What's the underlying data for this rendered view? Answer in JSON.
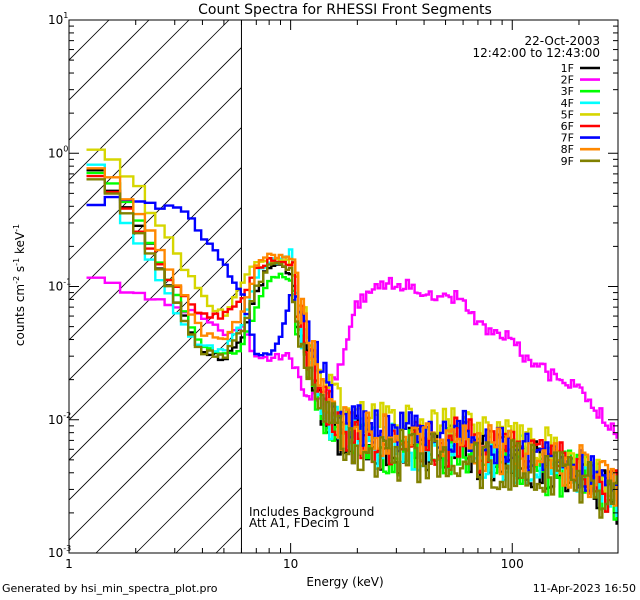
{
  "chart_data": {
    "type": "line",
    "title": "Count Spectra for RHESSI Front Segments",
    "xlabel": "Energy (keV)",
    "ylabel": {
      "base": "counts cm",
      "exp1": "-2",
      "mid1": " s",
      "exp2": "-1",
      "mid2": " keV",
      "exp3": "-1"
    },
    "xscale": "log",
    "yscale": "log",
    "xlim": [
      1,
      300
    ],
    "ylim": [
      0.001,
      10
    ],
    "x_ticks": [
      {
        "v": 1,
        "label": "1"
      },
      {
        "v": 10,
        "label": "10"
      },
      {
        "v": 100,
        "label": "100"
      }
    ],
    "y_ticks": [
      {
        "v": 0.001,
        "base": "10",
        "exp": "-3"
      },
      {
        "v": 0.01,
        "base": "10",
        "exp": "-2"
      },
      {
        "v": 0.1,
        "base": "10",
        "exp": "-1"
      },
      {
        "v": 1,
        "base": "10",
        "exp": "0"
      },
      {
        "v": 10,
        "base": "10",
        "exp": "1"
      }
    ],
    "attenuator_region": [
      1,
      6
    ],
    "date": "22-Oct-2003",
    "time_range": "12:42:00 to 12:43:00",
    "annotation": [
      "Includes Background",
      "Att A1, FDecim 1"
    ],
    "series": [
      {
        "name": "1F",
        "color": "#000000",
        "points": [
          [
            1.2,
            0.8
          ],
          [
            1.5,
            0.62
          ],
          [
            2,
            0.32
          ],
          [
            2.5,
            0.16
          ],
          [
            3,
            0.085
          ],
          [
            3.5,
            0.05
          ],
          [
            4,
            0.034
          ],
          [
            5,
            0.028
          ],
          [
            6,
            0.04
          ],
          [
            7,
            0.09
          ],
          [
            8,
            0.14
          ],
          [
            9,
            0.15
          ],
          [
            10,
            0.12
          ],
          [
            11,
            0.04
          ],
          [
            12,
            0.025
          ],
          [
            14,
            0.013
          ],
          [
            17,
            0.008
          ],
          [
            20,
            0.007
          ],
          [
            25,
            0.006
          ],
          [
            30,
            0.0062
          ],
          [
            40,
            0.0058
          ],
          [
            50,
            0.0057
          ],
          [
            60,
            0.007
          ],
          [
            70,
            0.005
          ],
          [
            80,
            0.0052
          ],
          [
            100,
            0.005
          ],
          [
            120,
            0.0045
          ],
          [
            150,
            0.0045
          ],
          [
            200,
            0.004
          ],
          [
            250,
            0.003
          ],
          [
            300,
            0.0025
          ]
        ],
        "jit": 0.45,
        "seed": 11
      },
      {
        "name": "2F",
        "color": "#ff00ff",
        "points": [
          [
            1.2,
            0.115
          ],
          [
            1.5,
            0.105
          ],
          [
            2,
            0.09
          ],
          [
            2.5,
            0.08
          ],
          [
            3,
            0.07
          ],
          [
            4,
            0.06
          ],
          [
            5,
            0.045
          ],
          [
            6,
            0.05
          ],
          [
            7,
            0.03
          ],
          [
            8,
            0.028
          ],
          [
            9,
            0.03
          ],
          [
            10,
            0.03
          ],
          [
            12,
            0.015
          ],
          [
            14,
            0.014
          ],
          [
            16,
            0.02
          ],
          [
            18,
            0.04
          ],
          [
            20,
            0.075
          ],
          [
            25,
            0.1
          ],
          [
            30,
            0.105
          ],
          [
            35,
            0.098
          ],
          [
            40,
            0.09
          ],
          [
            50,
            0.085
          ],
          [
            60,
            0.08
          ],
          [
            70,
            0.055
          ],
          [
            80,
            0.045
          ],
          [
            100,
            0.04
          ],
          [
            120,
            0.026
          ],
          [
            150,
            0.022
          ],
          [
            200,
            0.018
          ],
          [
            250,
            0.011
          ],
          [
            300,
            0.0075
          ]
        ],
        "jit": 0.12,
        "seed": 12
      },
      {
        "name": "3F",
        "color": "#00ff00",
        "points": [
          [
            1.2,
            0.85
          ],
          [
            1.5,
            0.65
          ],
          [
            2,
            0.34
          ],
          [
            2.5,
            0.17
          ],
          [
            3,
            0.09
          ],
          [
            3.5,
            0.052
          ],
          [
            4,
            0.036
          ],
          [
            5,
            0.03
          ],
          [
            6,
            0.035
          ],
          [
            7,
            0.07
          ],
          [
            8,
            0.11
          ],
          [
            9,
            0.12
          ],
          [
            10,
            0.11
          ],
          [
            11,
            0.05
          ],
          [
            12,
            0.028
          ],
          [
            14,
            0.012
          ],
          [
            17,
            0.007
          ],
          [
            20,
            0.0065
          ],
          [
            25,
            0.006
          ],
          [
            30,
            0.006
          ],
          [
            40,
            0.0055
          ],
          [
            50,
            0.0058
          ],
          [
            60,
            0.0068
          ],
          [
            70,
            0.005
          ],
          [
            80,
            0.005
          ],
          [
            100,
            0.0048
          ],
          [
            120,
            0.0045
          ],
          [
            150,
            0.0042
          ],
          [
            200,
            0.004
          ],
          [
            250,
            0.003
          ],
          [
            300,
            0.0026
          ]
        ],
        "jit": 0.45,
        "seed": 13
      },
      {
        "name": "4F",
        "color": "#00ffff",
        "points": [
          [
            1.2,
            1.15
          ],
          [
            1.5,
            0.6
          ],
          [
            2,
            0.22
          ],
          [
            2.5,
            0.13
          ],
          [
            3,
            0.07
          ],
          [
            3.5,
            0.045
          ],
          [
            4,
            0.036
          ],
          [
            5,
            0.032
          ],
          [
            6,
            0.05
          ],
          [
            7,
            0.12
          ],
          [
            8,
            0.15
          ],
          [
            9,
            0.16
          ],
          [
            10,
            0.18
          ],
          [
            11,
            0.07
          ],
          [
            12,
            0.03
          ],
          [
            14,
            0.012
          ],
          [
            17,
            0.009
          ],
          [
            20,
            0.007
          ],
          [
            25,
            0.0065
          ],
          [
            30,
            0.0062
          ],
          [
            40,
            0.006
          ],
          [
            50,
            0.0058
          ],
          [
            60,
            0.0075
          ],
          [
            70,
            0.0052
          ],
          [
            80,
            0.005
          ],
          [
            100,
            0.005
          ],
          [
            120,
            0.0048
          ],
          [
            150,
            0.0045
          ],
          [
            200,
            0.004
          ],
          [
            250,
            0.003
          ],
          [
            300,
            0.0026
          ]
        ],
        "jit": 0.45,
        "seed": 14
      },
      {
        "name": "5F",
        "color": "#d6d600",
        "points": [
          [
            1.2,
            1.2
          ],
          [
            1.5,
            1.0
          ],
          [
            2,
            0.6
          ],
          [
            2.5,
            0.3
          ],
          [
            3,
            0.19
          ],
          [
            3.5,
            0.12
          ],
          [
            4,
            0.085
          ],
          [
            5,
            0.06
          ],
          [
            6,
            0.1
          ],
          [
            7,
            0.16
          ],
          [
            8,
            0.16
          ],
          [
            9,
            0.16
          ],
          [
            10,
            0.15
          ],
          [
            11,
            0.08
          ],
          [
            12,
            0.04
          ],
          [
            14,
            0.02
          ],
          [
            17,
            0.012
          ],
          [
            20,
            0.01
          ],
          [
            25,
            0.01
          ],
          [
            30,
            0.0095
          ],
          [
            40,
            0.009
          ],
          [
            50,
            0.009
          ],
          [
            60,
            0.01
          ],
          [
            70,
            0.0085
          ],
          [
            80,
            0.008
          ],
          [
            100,
            0.0075
          ],
          [
            120,
            0.007
          ],
          [
            150,
            0.0065
          ],
          [
            200,
            0.005
          ],
          [
            250,
            0.004
          ],
          [
            300,
            0.003
          ]
        ],
        "jit": 0.32,
        "seed": 15
      },
      {
        "name": "6F",
        "color": "#ff0000",
        "points": [
          [
            1.2,
            0.78
          ],
          [
            1.5,
            0.6
          ],
          [
            2,
            0.3
          ],
          [
            2.5,
            0.16
          ],
          [
            3,
            0.1
          ],
          [
            3.5,
            0.075
          ],
          [
            4,
            0.06
          ],
          [
            5,
            0.06
          ],
          [
            6,
            0.08
          ],
          [
            7,
            0.13
          ],
          [
            8,
            0.16
          ],
          [
            9,
            0.16
          ],
          [
            10,
            0.14
          ],
          [
            11,
            0.06
          ],
          [
            12,
            0.03
          ],
          [
            14,
            0.015
          ],
          [
            17,
            0.009
          ],
          [
            20,
            0.008
          ],
          [
            25,
            0.007
          ],
          [
            30,
            0.007
          ],
          [
            40,
            0.0065
          ],
          [
            50,
            0.0065
          ],
          [
            60,
            0.008
          ],
          [
            70,
            0.0058
          ],
          [
            80,
            0.0058
          ],
          [
            100,
            0.0055
          ],
          [
            120,
            0.005
          ],
          [
            150,
            0.0048
          ],
          [
            200,
            0.0042
          ],
          [
            250,
            0.0032
          ],
          [
            300,
            0.0028
          ]
        ],
        "jit": 0.42,
        "seed": 16
      },
      {
        "name": "7F",
        "color": "#0000ff",
        "points": [
          [
            1.2,
            0.4
          ],
          [
            1.5,
            0.44
          ],
          [
            2,
            0.46
          ],
          [
            2.5,
            0.4
          ],
          [
            3,
            0.42
          ],
          [
            3.5,
            0.35
          ],
          [
            4,
            0.25
          ],
          [
            5,
            0.15
          ],
          [
            6,
            0.09
          ],
          [
            7,
            0.03
          ],
          [
            8,
            0.03
          ],
          [
            9,
            0.04
          ],
          [
            10,
            0.09
          ],
          [
            11,
            0.08
          ],
          [
            12,
            0.04
          ],
          [
            14,
            0.02
          ],
          [
            17,
            0.01
          ],
          [
            20,
            0.009
          ],
          [
            25,
            0.009
          ],
          [
            30,
            0.0085
          ],
          [
            40,
            0.008
          ],
          [
            50,
            0.0075
          ],
          [
            60,
            0.0085
          ],
          [
            70,
            0.007
          ],
          [
            80,
            0.0065
          ],
          [
            100,
            0.006
          ],
          [
            120,
            0.0055
          ],
          [
            150,
            0.005
          ],
          [
            200,
            0.0045
          ],
          [
            250,
            0.0035
          ],
          [
            300,
            0.003
          ]
        ],
        "jit": 0.38,
        "seed": 17
      },
      {
        "name": "8F",
        "color": "#ff8800",
        "points": [
          [
            1.2,
            0.85
          ],
          [
            1.5,
            0.7
          ],
          [
            2,
            0.4
          ],
          [
            2.5,
            0.2
          ],
          [
            3,
            0.11
          ],
          [
            3.5,
            0.07
          ],
          [
            4,
            0.045
          ],
          [
            5,
            0.04
          ],
          [
            6,
            0.06
          ],
          [
            7,
            0.14
          ],
          [
            8,
            0.17
          ],
          [
            9,
            0.17
          ],
          [
            10,
            0.16
          ],
          [
            11,
            0.07
          ],
          [
            12,
            0.035
          ],
          [
            14,
            0.016
          ],
          [
            17,
            0.009
          ],
          [
            20,
            0.008
          ],
          [
            25,
            0.0075
          ],
          [
            30,
            0.007
          ],
          [
            40,
            0.0068
          ],
          [
            50,
            0.0065
          ],
          [
            60,
            0.0085
          ],
          [
            70,
            0.006
          ],
          [
            80,
            0.006
          ],
          [
            100,
            0.0055
          ],
          [
            120,
            0.0052
          ],
          [
            150,
            0.005
          ],
          [
            200,
            0.0045
          ],
          [
            250,
            0.0035
          ],
          [
            300,
            0.0028
          ]
        ],
        "jit": 0.42,
        "seed": 18
      },
      {
        "name": "9F",
        "color": "#808000",
        "points": [
          [
            1.2,
            0.72
          ],
          [
            1.5,
            0.55
          ],
          [
            2,
            0.28
          ],
          [
            2.5,
            0.15
          ],
          [
            3,
            0.08
          ],
          [
            3.5,
            0.045
          ],
          [
            4,
            0.032
          ],
          [
            5,
            0.03
          ],
          [
            6,
            0.045
          ],
          [
            7,
            0.1
          ],
          [
            8,
            0.14
          ],
          [
            9,
            0.15
          ],
          [
            10,
            0.13
          ],
          [
            11,
            0.05
          ],
          [
            12,
            0.025
          ],
          [
            14,
            0.011
          ],
          [
            17,
            0.007
          ],
          [
            20,
            0.006
          ],
          [
            25,
            0.0055
          ],
          [
            30,
            0.0055
          ],
          [
            40,
            0.005
          ],
          [
            50,
            0.0052
          ],
          [
            60,
            0.006
          ],
          [
            70,
            0.0048
          ],
          [
            80,
            0.0048
          ],
          [
            100,
            0.0045
          ],
          [
            120,
            0.0042
          ],
          [
            150,
            0.004
          ],
          [
            200,
            0.0038
          ],
          [
            250,
            0.0028
          ],
          [
            300,
            0.0024
          ]
        ],
        "jit": 0.45,
        "seed": 19
      }
    ]
  },
  "footer": {
    "generated_by": "Generated by hsi_min_spectra_plot.pro",
    "timestamp": "11-Apr-2023 16:50"
  }
}
